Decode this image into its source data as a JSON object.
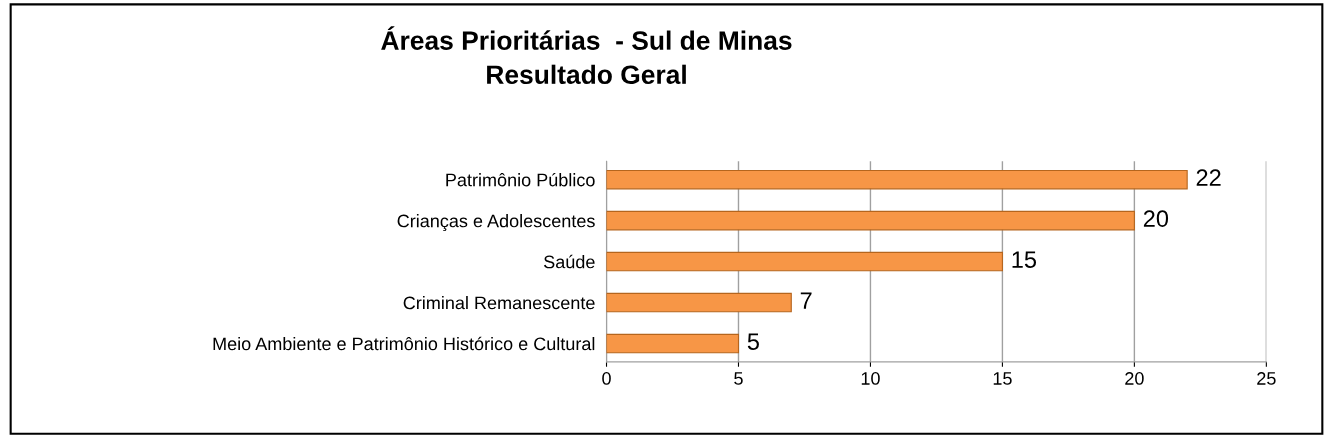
{
  "chart_data": {
    "type": "bar",
    "orientation": "horizontal",
    "title": "Áreas Prioritárias  - Sul de Minas\nResultado Geral",
    "categories": [
      "Patrimônio Público",
      "Crianças e Adolescentes",
      "Saúde",
      "Criminal Remanescente",
      "Meio Ambiente e Patrimônio Histórico e Cultural"
    ],
    "values": [
      22,
      20,
      15,
      7,
      5
    ],
    "color": "#f79646",
    "xlim": [
      0,
      25
    ],
    "xticks": [
      0,
      5,
      10,
      15,
      20,
      25
    ],
    "grid": "x",
    "data_labels": true
  }
}
